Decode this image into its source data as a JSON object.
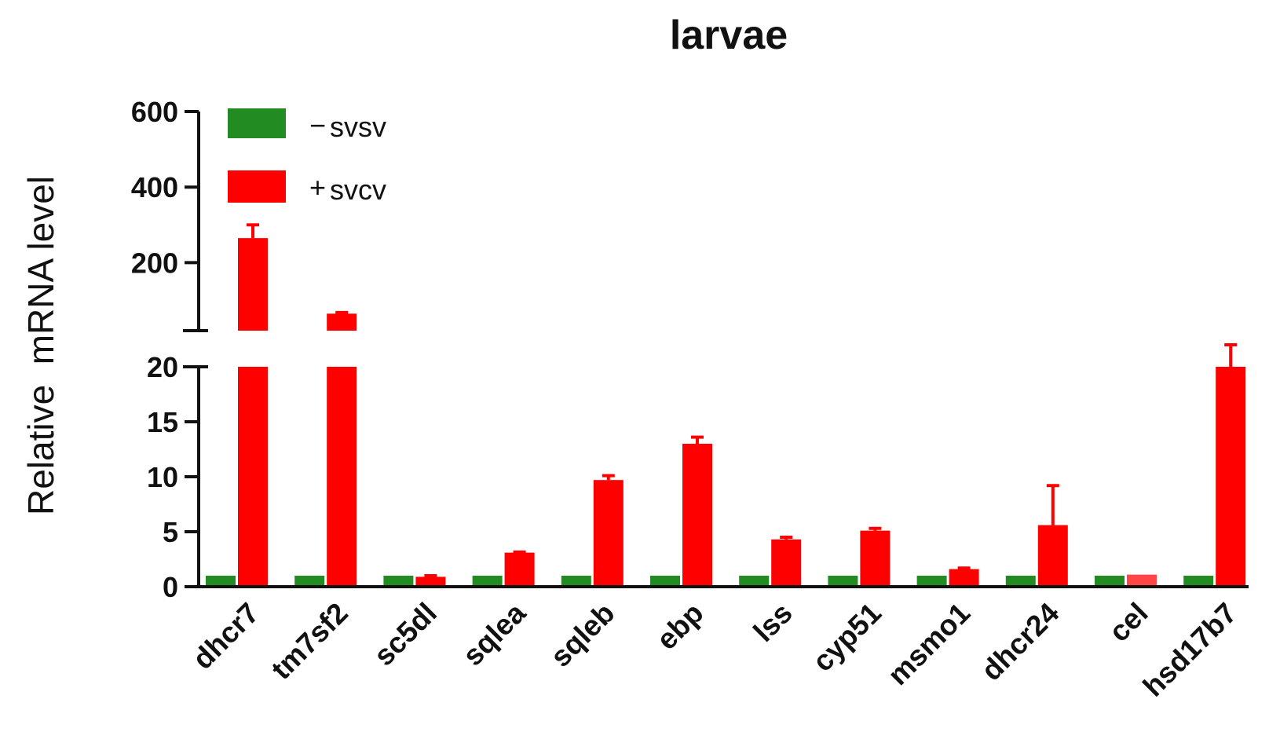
{
  "chart_data": {
    "type": "bar",
    "title": "larvae",
    "xlabel": "",
    "ylabel": "Relative  mRNA level",
    "axis_break": true,
    "lower_ylim": [
      0,
      20
    ],
    "upper_ylim": [
      20,
      600
    ],
    "lower_ticks": [
      "0",
      "5",
      "10",
      "15",
      "20"
    ],
    "upper_ticks": [
      "200",
      "400",
      "600"
    ],
    "legend_position": "top-left",
    "categories": [
      "dhcr7",
      "tm7sf2",
      "sc5dl",
      "sqlea",
      "sqleb",
      "ebp",
      "lss",
      "cyp51",
      "msmo1",
      "dhcr24",
      "cel",
      "hsd17b7"
    ],
    "series": [
      {
        "name": "−svsv",
        "legend_sign": "−",
        "legend_text": "svsv",
        "color": "#228B22",
        "values": [
          1,
          1,
          1,
          1,
          1,
          1,
          1,
          1,
          1,
          1,
          1,
          1
        ],
        "errors": [
          0,
          0,
          0,
          0,
          0,
          0,
          0,
          0,
          0,
          0,
          0,
          0
        ]
      },
      {
        "name": "+svcv",
        "legend_sign": "+",
        "legend_text": "svcv",
        "color": "#FF0000",
        "values": [
          265,
          65,
          0.9,
          3.1,
          9.7,
          13.0,
          4.3,
          5.1,
          1.6,
          5.6,
          1.1,
          20
        ],
        "errors": [
          35,
          3,
          0.1,
          0.05,
          0.4,
          0.6,
          0.2,
          0.2,
          0.1,
          3.6,
          0,
          2
        ]
      }
    ]
  }
}
